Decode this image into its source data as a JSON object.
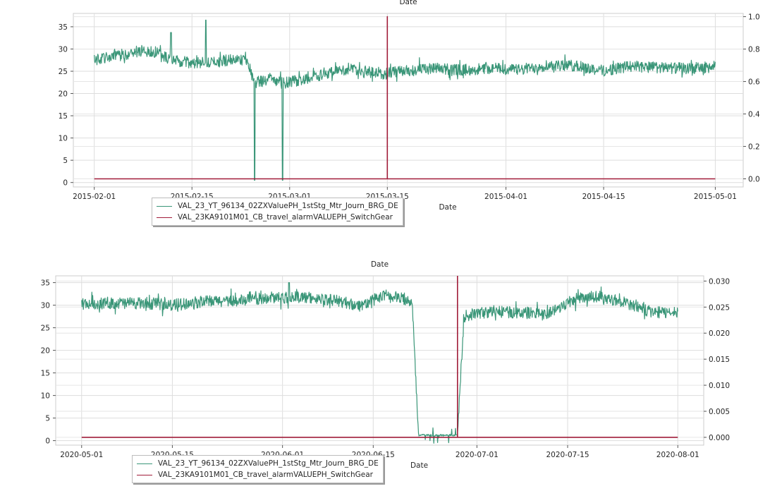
{
  "chart_data": [
    {
      "type": "line",
      "title": "",
      "xlabel": "Date",
      "ylabel": "",
      "x_ticks": [
        "2015-02-01",
        "2015-02-15",
        "2015-03-01",
        "2015-03-15",
        "2015-04-01",
        "2015-04-15",
        "2015-05-01"
      ],
      "y_left_ticks": [
        "0",
        "5",
        "10",
        "15",
        "20",
        "25",
        "30",
        "35"
      ],
      "y_right_ticks": [
        "0.0",
        "0.2",
        "0.4",
        "0.6",
        "0.8",
        "1.0"
      ],
      "xlim": [
        "2015-01-29",
        "2015-05-05"
      ],
      "ylim_left": [
        -1,
        38
      ],
      "ylim_right": [
        -0.05,
        1.02
      ],
      "grid": true,
      "legend_placement": "lower-left, below axis",
      "series": [
        {
          "name": "VAL_23_YT_96134_02ZXValuePH_1stStg_Mtr_Journ_BRG_DE",
          "axis": "left",
          "color": "#3a9678",
          "x": [
            "2015-02-01",
            "2015-02-05",
            "2015-02-08",
            "2015-02-10",
            "2015-02-12",
            "2015-02-15",
            "2015-02-18",
            "2015-02-21",
            "2015-02-23",
            "2015-02-24",
            "2015-02-25",
            "2015-02-26",
            "2015-02-27",
            "2015-02-28",
            "2015-03-03",
            "2015-03-07",
            "2015-03-10",
            "2015-03-14",
            "2015-03-18",
            "2015-03-22",
            "2015-03-26",
            "2015-03-30",
            "2015-04-03",
            "2015-04-07",
            "2015-04-11",
            "2015-04-15",
            "2015-04-19",
            "2015-04-23",
            "2015-04-27",
            "2015-05-01"
          ],
          "y": [
            27.5,
            28.7,
            29.7,
            29.3,
            27.5,
            26.8,
            26.9,
            27.7,
            27.3,
            22.5,
            22.8,
            23.2,
            22.8,
            22.3,
            23.2,
            24.8,
            25.5,
            24.3,
            25.2,
            25.6,
            25.3,
            25.7,
            25.3,
            26.4,
            26.2,
            25.1,
            26.2,
            25.8,
            25.6,
            26.0
          ],
          "dips": [
            {
              "x": "2015-02-24",
              "y": 0.5
            },
            {
              "x": "2015-02-28",
              "y": 0.5
            }
          ],
          "spikes": [
            {
              "x": "2015-02-12",
              "y": 33.7
            },
            {
              "x": "2015-02-17",
              "y": 36.5
            }
          ]
        },
        {
          "name": "VAL_23KA9101M01_CB_travel_alarmVALUEPH_SwitchGear",
          "axis": "right",
          "color": "#a11d3a",
          "x": [
            "2015-02-01",
            "2015-03-15",
            "2015-03-15",
            "2015-03-15",
            "2015-05-01"
          ],
          "y": [
            0,
            0,
            1,
            0,
            0
          ]
        }
      ]
    },
    {
      "type": "line",
      "title": "",
      "xlabel": "Date",
      "ylabel": "",
      "x_ticks": [
        "2020-05-01",
        "2020-05-15",
        "2020-06-01",
        "2020-06-15",
        "2020-07-01",
        "2020-07-15",
        "2020-08-01"
      ],
      "y_left_ticks": [
        "0",
        "5",
        "10",
        "15",
        "20",
        "25",
        "30",
        "35"
      ],
      "y_right_ticks": [
        "0.000",
        "0.005",
        "0.010",
        "0.015",
        "0.020",
        "0.025",
        "0.030"
      ],
      "xlim": [
        "2020-04-27",
        "2020-08-05"
      ],
      "ylim_left": [
        -1,
        36.5
      ],
      "ylim_right": [
        -0.0015,
        0.031
      ],
      "grid": true,
      "legend_placement": "lower-left, below axis",
      "series": [
        {
          "name": "VAL_23_YT_96134_02ZXValuePH_1stStg_Mtr_Journ_BRG_DE",
          "axis": "left",
          "color": "#3a9678",
          "x": [
            "2020-05-01",
            "2020-05-05",
            "2020-05-10",
            "2020-05-15",
            "2020-05-20",
            "2020-05-25",
            "2020-05-30",
            "2020-06-04",
            "2020-06-09",
            "2020-06-13",
            "2020-06-17",
            "2020-06-21",
            "2020-06-22",
            "2020-06-26",
            "2020-06-28",
            "2020-06-29",
            "2020-07-01",
            "2020-07-04",
            "2020-07-08",
            "2020-07-12",
            "2020-07-16",
            "2020-07-20",
            "2020-07-24",
            "2020-07-28",
            "2020-08-01"
          ],
          "y": [
            30.2,
            30.5,
            30.4,
            30.1,
            30.8,
            31.0,
            31.6,
            31.8,
            31.1,
            29.9,
            32.2,
            31.0,
            1.2,
            1.2,
            1.2,
            27.5,
            28.2,
            28.6,
            28.3,
            28.1,
            31.4,
            32.0,
            30.5,
            28.5,
            28.2
          ],
          "spikes": [
            {
              "x": "2020-06-02",
              "y": 35.0
            }
          ]
        },
        {
          "name": "VAL_23KA9101M01_CB_travel_alarmVALUEPH_SwitchGear",
          "axis": "right",
          "color": "#a11d3a",
          "x": [
            "2020-05-01",
            "2020-06-28",
            "2020-06-28",
            "2020-06-28",
            "2020-08-01"
          ],
          "y": [
            0,
            0,
            0.031,
            0,
            0
          ]
        }
      ]
    }
  ]
}
